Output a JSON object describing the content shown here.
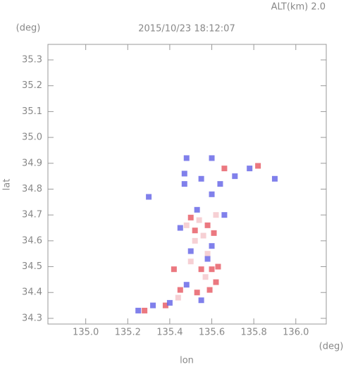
{
  "chart_data": {
    "type": "scatter",
    "title": "2015/10/23 18:12:07",
    "annotation": "ALT(km) 2.0",
    "y_unit": "(deg)",
    "x_unit": "(deg)",
    "x_label": "lon",
    "y_label": "lat",
    "xlim": [
      134.82,
      136.145
    ],
    "ylim": [
      34.278,
      35.36
    ],
    "xticks": [
      {
        "value": 135.0,
        "label": "135.0"
      },
      135.2,
      135.4,
      135.6,
      135.8,
      {
        "value": 136.0,
        "label": "136.0"
      }
    ],
    "yticks": [
      34.3,
      34.4,
      34.5,
      34.6,
      34.7,
      34.8,
      34.9,
      {
        "value": 35.0,
        "label": "35.0"
      },
      35.1,
      35.2,
      35.3
    ],
    "grid": false,
    "series": [
      {
        "color": "#f4c8cc",
        "x": [
          135.52,
          135.56,
          135.5,
          135.57,
          135.44,
          135.54,
          135.58,
          135.48,
          135.62
        ],
        "values": [
          34.6,
          34.62,
          34.52,
          34.46,
          34.38,
          34.68,
          34.55,
          34.66,
          34.7
        ]
      },
      {
        "color": "#e8606a",
        "x": [
          135.42,
          135.55,
          135.6,
          135.63,
          135.59,
          135.53,
          135.62,
          135.45,
          135.52,
          135.58,
          135.5,
          135.61,
          135.28,
          135.82,
          135.38,
          135.66
        ],
        "values": [
          34.49,
          34.49,
          34.49,
          34.5,
          34.41,
          34.4,
          34.44,
          34.41,
          34.64,
          34.66,
          34.69,
          34.63,
          34.33,
          34.89,
          34.35,
          34.88
        ]
      },
      {
        "color": "#6a6ae8",
        "x": [
          135.25,
          135.32,
          135.4,
          135.55,
          135.48,
          135.58,
          135.5,
          135.6,
          135.66,
          135.53,
          135.45,
          135.47,
          135.47,
          135.55,
          135.64,
          135.71,
          135.78,
          135.6,
          135.9,
          135.48,
          135.6,
          135.3
        ],
        "values": [
          34.33,
          34.35,
          34.36,
          34.37,
          34.43,
          34.53,
          34.56,
          34.58,
          34.7,
          34.72,
          34.65,
          34.82,
          34.86,
          34.84,
          34.82,
          34.85,
          34.88,
          34.78,
          34.84,
          34.92,
          34.92,
          34.77
        ]
      }
    ]
  }
}
